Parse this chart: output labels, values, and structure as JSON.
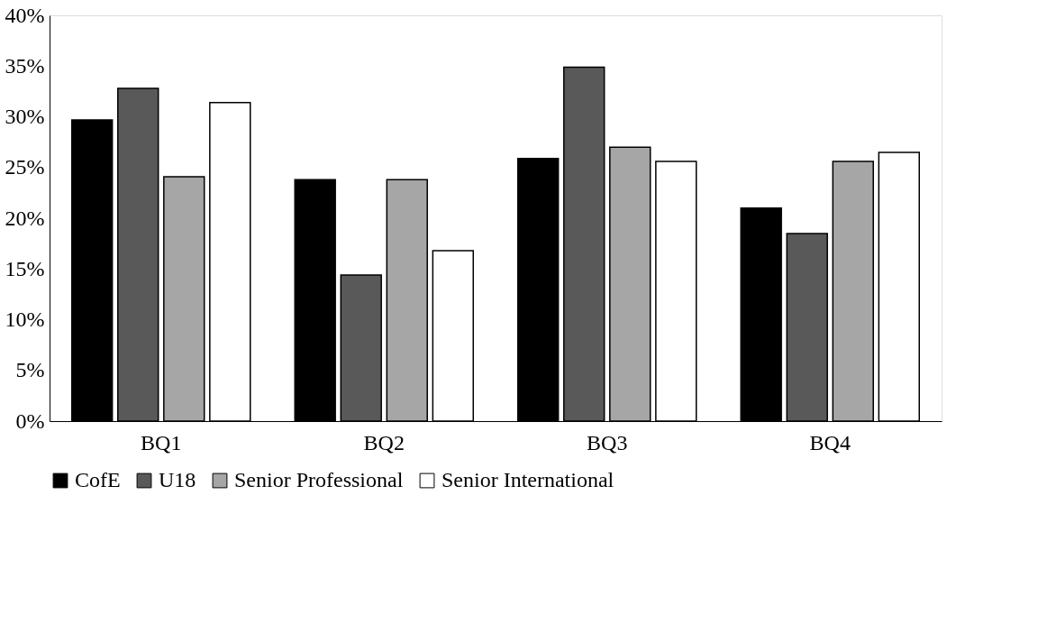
{
  "chart_data": {
    "type": "bar",
    "categories": [
      "BQ1",
      "BQ2",
      "BQ3",
      "BQ4"
    ],
    "series": [
      {
        "name": "CofE",
        "color": "#000000",
        "values": [
          29.7,
          23.8,
          25.9,
          21.0
        ]
      },
      {
        "name": "U18",
        "color": "#595959",
        "values": [
          32.8,
          14.4,
          34.9,
          18.5
        ]
      },
      {
        "name": "Senior Professional",
        "color": "#a6a6a6",
        "values": [
          24.1,
          23.8,
          27.0,
          25.6
        ]
      },
      {
        "name": "Senior International",
        "color": "#ffffff",
        "values": [
          31.4,
          16.8,
          25.6,
          26.5
        ]
      }
    ],
    "ylim": [
      0,
      40
    ],
    "yticks": [
      {
        "value": 0,
        "label": "0%"
      },
      {
        "value": 5,
        "label": "5%"
      },
      {
        "value": 10,
        "label": "10%"
      },
      {
        "value": 15,
        "label": "15%"
      },
      {
        "value": 20,
        "label": "20%"
      },
      {
        "value": 25,
        "label": "25%"
      },
      {
        "value": 30,
        "label": "30%"
      },
      {
        "value": 35,
        "label": "35%"
      },
      {
        "value": 40,
        "label": "40%"
      }
    ],
    "grid": false,
    "legend": "bottom"
  }
}
